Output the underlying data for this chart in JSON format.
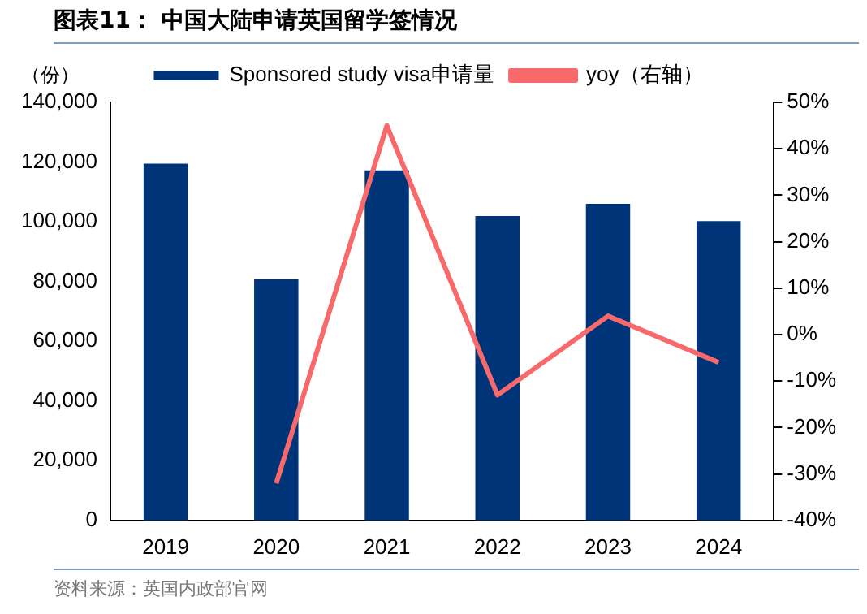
{
  "chart_data": {
    "type": "bar",
    "title": "图表11：  中国大陆申请英国留学签情况",
    "ylabel": "（份）",
    "categories": [
      "2019",
      "2020",
      "2021",
      "2022",
      "2023",
      "2024"
    ],
    "series": [
      {
        "name": "Sponsored study visa申请量",
        "color": "#003478",
        "values": [
          119500,
          80800,
          117200,
          101900,
          106000,
          100200
        ]
      },
      {
        "name": "yoy（右轴）",
        "type": "line",
        "axis": "y2",
        "color": "#f8696b",
        "values": [
          null,
          -32,
          45,
          -13,
          4,
          -6
        ]
      }
    ],
    "ylim": [
      0,
      140000
    ],
    "yticks": [
      {
        "value": 0,
        "label": "0"
      },
      {
        "value": 20000,
        "label": "20,000"
      },
      {
        "value": 40000,
        "label": "40,000"
      },
      {
        "value": 60000,
        "label": "60,000"
      },
      {
        "value": 80000,
        "label": "80,000"
      },
      {
        "value": 100000,
        "label": "100,000"
      },
      {
        "value": 120000,
        "label": "120,000"
      },
      {
        "value": 140000,
        "label": "140,000"
      }
    ],
    "y2lim": [
      -40,
      50
    ],
    "y2ticks": [
      {
        "value": -40,
        "label": "-40%"
      },
      {
        "value": -30,
        "label": "-30%"
      },
      {
        "value": -20,
        "label": "-20%"
      },
      {
        "value": -10,
        "label": "-10%"
      },
      {
        "value": 0,
        "label": "0%"
      },
      {
        "value": 10,
        "label": "10%"
      },
      {
        "value": 20,
        "label": "20%"
      },
      {
        "value": 30,
        "label": "30%"
      },
      {
        "value": 40,
        "label": "40%"
      },
      {
        "value": 50,
        "label": "50%"
      }
    ],
    "annotations": [
      "资料来源：英国内政部官网"
    ],
    "legend": "top",
    "grid": false,
    "marker": "none",
    "line_style": "solid"
  }
}
